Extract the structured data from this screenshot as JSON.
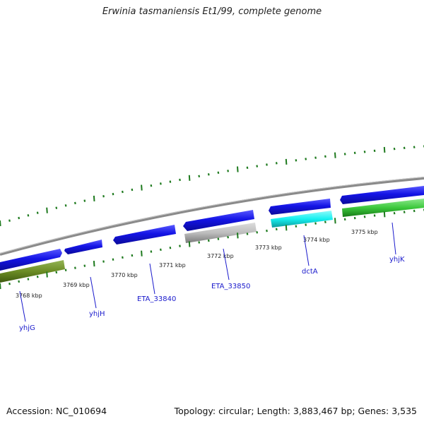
{
  "title": "Erwinia tasmaniensis Et1/99, complete genome",
  "accession": "Accession: NC_010694",
  "summary": "Topology: circular; Length: 3,883,467 bp; Genes: 3,535",
  "scale_labels": [
    "3768 kbp",
    "3769 kbp",
    "3770 kbp",
    "3771 kbp",
    "3772 kbp",
    "3773 kbp",
    "3774 kbp",
    "3775 kbp"
  ],
  "gene_labels": [
    "yhjG",
    "yhjH",
    "ETA_33840",
    "ETA_33850",
    "dctA",
    "yhjK"
  ],
  "colors": {
    "backbone": "#8a8a8a",
    "cds": "#1414e6",
    "highlight_gray": "#bdbdbd",
    "highlight_cyan": "#16f0f0",
    "highlight_olive": "#6b8c24",
    "highlight_green": "#3cc83c",
    "ticks": "#1e7a1e",
    "label_line": "#1a1acc"
  }
}
